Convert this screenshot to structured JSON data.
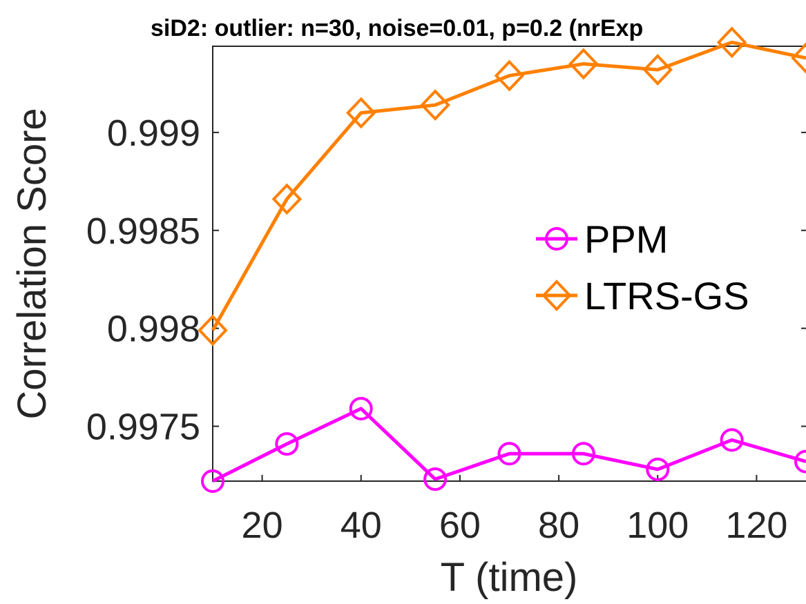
{
  "chart_data": {
    "type": "line",
    "title": "siD2: outlier: n=30, noise=0.01, p=0.2 (nrExp",
    "xlabel": "T (time)",
    "ylabel": "Correlation Score",
    "xlim": [
      10,
      130
    ],
    "ylim": [
      0.99722,
      0.99944
    ],
    "xticks": [
      20,
      40,
      60,
      80,
      100,
      120
    ],
    "xtick_labels": [
      "20",
      "40",
      "60",
      "80",
      "100",
      "120"
    ],
    "yticks": [
      0.9975,
      0.998,
      0.9985,
      0.999
    ],
    "ytick_labels": [
      "0.9975",
      "0.998",
      "0.9985",
      "0.999"
    ],
    "grid": false,
    "legend_position": "center-right",
    "x": [
      10,
      25,
      40,
      55,
      70,
      85,
      100,
      115,
      130
    ],
    "series": [
      {
        "name": "PPM",
        "color": "#ff00ff",
        "marker": "circle",
        "values": [
          0.99722,
          0.99741,
          0.99759,
          0.99723,
          0.99736,
          0.99736,
          0.99728,
          0.99743,
          0.99732
        ]
      },
      {
        "name": "LTRS-GS",
        "color": "#ff8000",
        "marker": "diamond",
        "values": [
          0.99799,
          0.99866,
          0.9991,
          0.99914,
          0.99929,
          0.99935,
          0.99932,
          0.99946,
          0.99938
        ]
      }
    ]
  }
}
